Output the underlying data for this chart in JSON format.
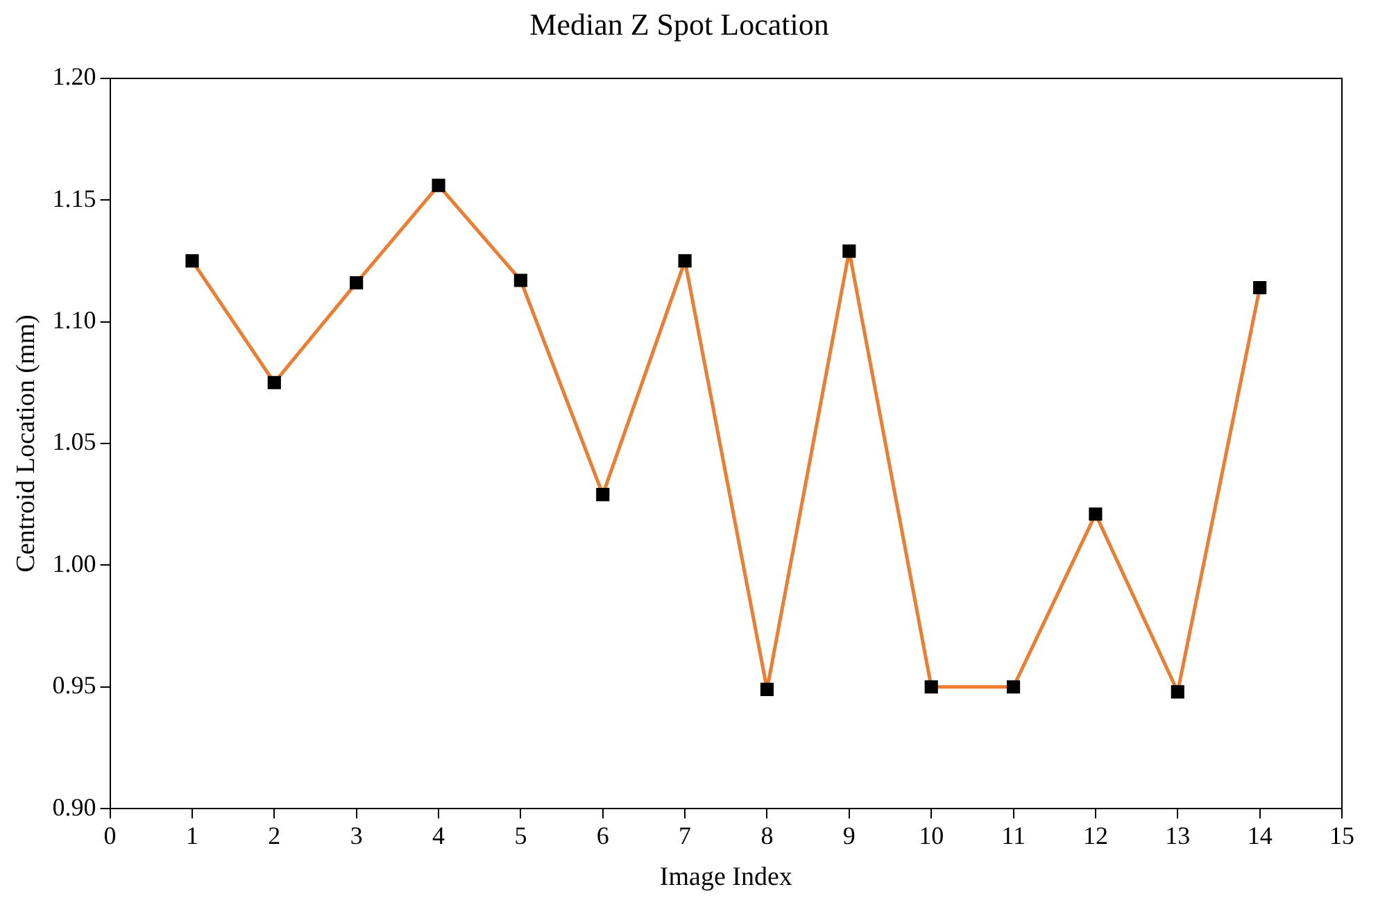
{
  "chart_data": {
    "type": "line",
    "title": "Median Z Spot Location",
    "xlabel": "Image Index",
    "ylabel": "Centroid Location (mm)",
    "x": [
      1,
      2,
      3,
      4,
      5,
      6,
      7,
      8,
      9,
      10,
      11,
      12,
      13,
      14
    ],
    "series": [
      {
        "color": "#ed7d31",
        "values": [
          1.125,
          1.075,
          1.116,
          1.156,
          1.117,
          1.029,
          1.125,
          0.949,
          1.129,
          0.95,
          0.95,
          1.021,
          0.948,
          1.114
        ]
      }
    ],
    "xlim": [
      0,
      15
    ],
    "xticks": [
      0,
      1,
      2,
      3,
      4,
      5,
      6,
      7,
      8,
      9,
      10,
      11,
      12,
      13,
      14,
      15
    ],
    "ylim": [
      0.9,
      1.2
    ],
    "yticks": [
      {
        "value": 0.9,
        "label": "0.90"
      },
      {
        "value": 0.95,
        "label": "0.95"
      },
      {
        "value": 1.0,
        "label": "1.00"
      },
      {
        "value": 1.05,
        "label": "1.05"
      },
      {
        "value": 1.1,
        "label": "1.10"
      },
      {
        "value": 1.15,
        "label": "1.15"
      },
      {
        "value": 1.2,
        "label": "1.20"
      }
    ],
    "marker": "square",
    "line_style": "solid",
    "grid": false,
    "legend": false
  }
}
